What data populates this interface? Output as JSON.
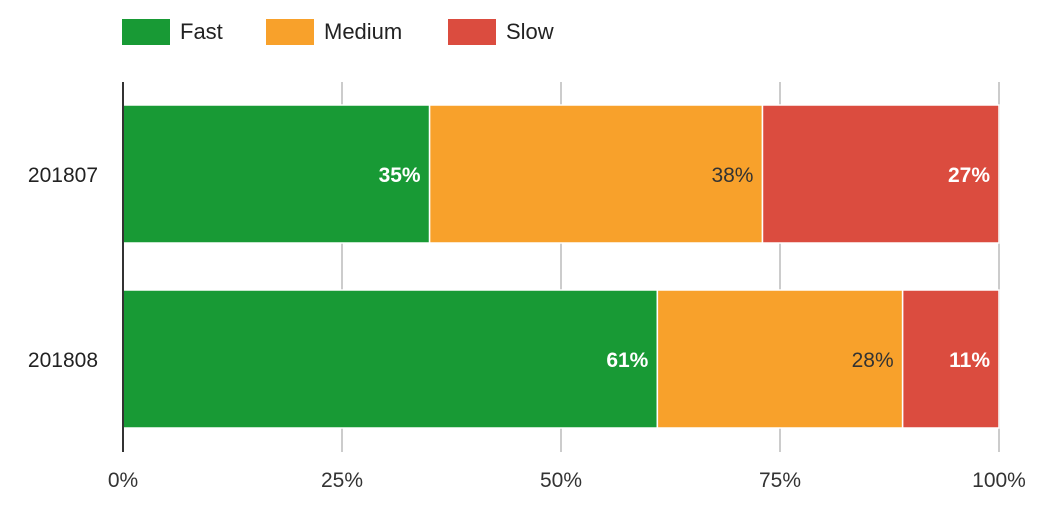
{
  "chart_data": {
    "type": "bar",
    "orientation": "horizontal",
    "stacked": true,
    "categories": [
      "201807",
      "201808"
    ],
    "series": [
      {
        "name": "Fast",
        "color": "#189a35",
        "values": [
          35,
          61
        ],
        "labels": [
          "35%",
          "61%"
        ],
        "label_color": "#ffffff",
        "label_bold": true
      },
      {
        "name": "Medium",
        "color": "#f8a12b",
        "values": [
          38,
          28
        ],
        "labels": [
          "38%",
          "28%"
        ],
        "label_color": "#333333",
        "label_bold": false
      },
      {
        "name": "Slow",
        "color": "#db4c3f",
        "values": [
          27,
          11
        ],
        "labels": [
          "27%",
          "11%"
        ],
        "label_color": "#ffffff",
        "label_bold": true
      }
    ],
    "xlim": [
      0,
      100
    ],
    "xticks": [
      0,
      25,
      50,
      75,
      100
    ],
    "xtick_labels": [
      "0%",
      "25%",
      "50%",
      "75%",
      "100%"
    ],
    "grid": true,
    "legend_position": "top-left",
    "title": "",
    "xlabel": "",
    "ylabel": ""
  }
}
